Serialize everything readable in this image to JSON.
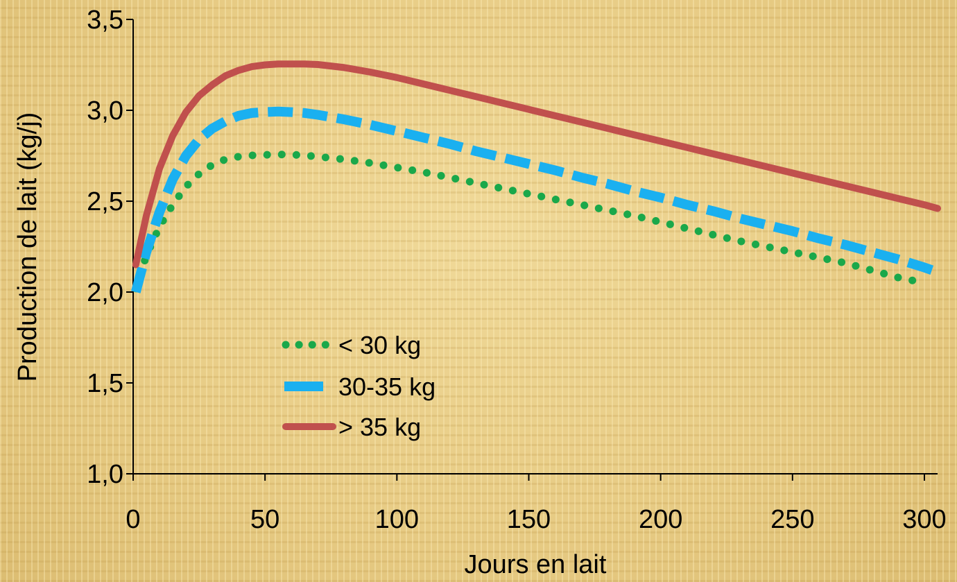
{
  "chart_data": {
    "type": "line",
    "title": "",
    "xlabel": "Jours en lait",
    "ylabel": "Production de lait (kg/j)",
    "xlim": [
      0,
      305
    ],
    "ylim": [
      1.0,
      3.5
    ],
    "x_ticks": [
      "0",
      "50",
      "100",
      "150",
      "200",
      "250",
      "300"
    ],
    "x_tick_values": [
      0,
      50,
      100,
      150,
      200,
      250,
      300
    ],
    "y_ticks": [
      "1,0",
      "1,5",
      "2,0",
      "2,5",
      "3,0",
      "3,5"
    ],
    "y_tick_values": [
      1.0,
      1.5,
      2.0,
      2.5,
      3.0,
      3.5
    ],
    "grid": false,
    "legend_position": "center-left",
    "series": [
      {
        "name": "< 30 kg",
        "style": "dotted",
        "color": "#1aa84a",
        "x": [
          1,
          5,
          10,
          15,
          20,
          25,
          30,
          35,
          40,
          45,
          50,
          55,
          60,
          65,
          70,
          80,
          90,
          100,
          110,
          120,
          130,
          140,
          150,
          160,
          170,
          180,
          190,
          200,
          210,
          220,
          230,
          240,
          250,
          260,
          270,
          280,
          290,
          300
        ],
        "y": [
          2.02,
          2.2,
          2.36,
          2.48,
          2.58,
          2.65,
          2.7,
          2.73,
          2.745,
          2.752,
          2.755,
          2.757,
          2.756,
          2.752,
          2.745,
          2.73,
          2.71,
          2.685,
          2.66,
          2.63,
          2.6,
          2.57,
          2.54,
          2.51,
          2.48,
          2.45,
          2.42,
          2.385,
          2.35,
          2.315,
          2.28,
          2.25,
          2.22,
          2.19,
          2.16,
          2.12,
          2.08,
          2.05
        ]
      },
      {
        "name": "30-35 kg",
        "style": "dashed",
        "color": "#1ab0f0",
        "x": [
          1,
          5,
          10,
          15,
          20,
          25,
          30,
          35,
          40,
          45,
          50,
          55,
          60,
          65,
          70,
          80,
          90,
          100,
          110,
          120,
          130,
          140,
          150,
          160,
          170,
          180,
          190,
          200,
          210,
          220,
          230,
          240,
          250,
          260,
          270,
          280,
          290,
          300,
          305
        ],
        "y": [
          2.0,
          2.22,
          2.44,
          2.62,
          2.75,
          2.84,
          2.9,
          2.94,
          2.97,
          2.985,
          2.99,
          2.993,
          2.99,
          2.985,
          2.975,
          2.95,
          2.92,
          2.885,
          2.85,
          2.815,
          2.775,
          2.74,
          2.705,
          2.67,
          2.63,
          2.595,
          2.555,
          2.52,
          2.48,
          2.445,
          2.405,
          2.37,
          2.335,
          2.295,
          2.26,
          2.22,
          2.18,
          2.135,
          2.11
        ]
      },
      {
        "name": "> 35 kg",
        "style": "solid",
        "color": "#c0504d",
        "x": [
          1,
          5,
          10,
          15,
          20,
          25,
          30,
          35,
          40,
          45,
          50,
          55,
          60,
          65,
          70,
          80,
          90,
          100,
          110,
          120,
          130,
          140,
          150,
          160,
          170,
          180,
          190,
          200,
          210,
          220,
          230,
          240,
          250,
          260,
          270,
          280,
          290,
          300,
          305
        ],
        "y": [
          2.15,
          2.42,
          2.68,
          2.86,
          2.99,
          3.08,
          3.14,
          3.19,
          3.22,
          3.24,
          3.25,
          3.255,
          3.255,
          3.255,
          3.252,
          3.235,
          3.21,
          3.18,
          3.145,
          3.11,
          3.075,
          3.04,
          3.005,
          2.97,
          2.935,
          2.9,
          2.865,
          2.83,
          2.795,
          2.76,
          2.725,
          2.69,
          2.655,
          2.62,
          2.585,
          2.55,
          2.515,
          2.48,
          2.46
        ]
      }
    ]
  }
}
